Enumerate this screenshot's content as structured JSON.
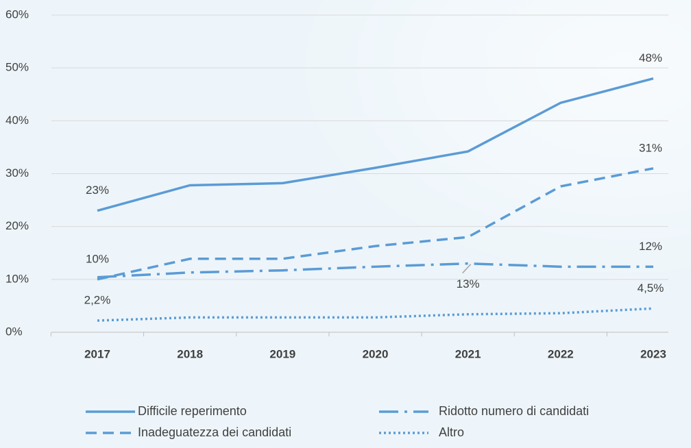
{
  "chart_data": {
    "type": "line",
    "categories": [
      "2017",
      "2018",
      "2019",
      "2020",
      "2021",
      "2022",
      "2023"
    ],
    "ylim": [
      0,
      60
    ],
    "yticks": [
      {
        "value": 0,
        "label": "0%"
      },
      {
        "value": 10,
        "label": "10%"
      },
      {
        "value": 20,
        "label": "20%"
      },
      {
        "value": 30,
        "label": "30%"
      },
      {
        "value": 40,
        "label": "40%"
      },
      {
        "value": 50,
        "label": "50%"
      },
      {
        "value": 60,
        "label": "60%"
      }
    ],
    "grid": true,
    "series": [
      {
        "name": "Difficile reperimento",
        "color": "#5b9bd5",
        "dash": "solid",
        "values": [
          23,
          27.8,
          28.2,
          31.1,
          34.2,
          43.4,
          48
        ],
        "value_labels": [
          "23%",
          null,
          null,
          null,
          null,
          null,
          "48%"
        ]
      },
      {
        "name": "Ridotto numero di candidati",
        "color": "#5b9bd5",
        "dash": "dashdot",
        "values": [
          10.4,
          11.3,
          11.7,
          12.4,
          13,
          12.4,
          12.4
        ],
        "value_labels": [
          null,
          null,
          null,
          null,
          "13%",
          null,
          "12%"
        ]
      },
      {
        "name": "Inadeguatezza dei candidati",
        "color": "#5b9bd5",
        "dash": "dashed",
        "values": [
          10,
          13.9,
          13.9,
          16.3,
          18,
          27.6,
          31
        ],
        "value_labels": [
          "10%",
          null,
          null,
          null,
          null,
          null,
          "31%"
        ]
      },
      {
        "name": "Altro",
        "color": "#5b9bd5",
        "dash": "dotted",
        "values": [
          2.2,
          2.8,
          2.8,
          2.8,
          3.4,
          3.6,
          4.5
        ],
        "value_labels": [
          "2,2%",
          null,
          null,
          null,
          null,
          null,
          "4,5%"
        ]
      }
    ]
  }
}
